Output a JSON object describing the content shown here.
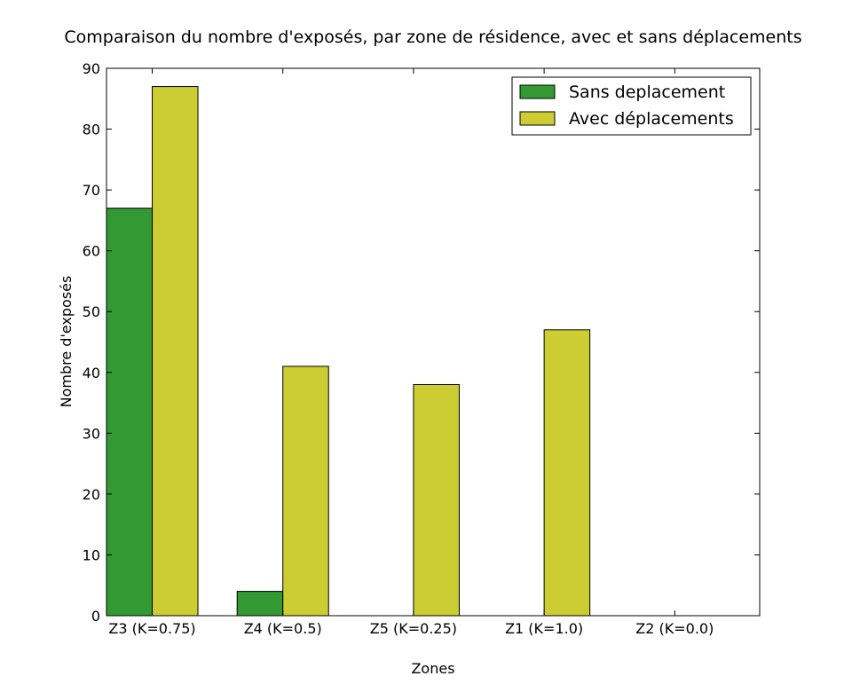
{
  "chart_data": {
    "type": "bar",
    "title": "Comparaison du nombre d'exposés, par zone de résidence, avec et sans déplacements",
    "xlabel": "Zones",
    "ylabel": "Nombre d'exposés",
    "categories": [
      "Z3 (K=0.75)",
      "Z4 (K=0.5)",
      "Z5 (K=0.25)",
      "Z1 (K=1.0)",
      "Z2 (K=0.0)"
    ],
    "series": [
      {
        "name": "Sans deplacement",
        "color": "#339933",
        "values": [
          67,
          4,
          0,
          0,
          0
        ]
      },
      {
        "name": "Avec déplacements",
        "color": "#cccc33",
        "values": [
          87,
          41,
          38,
          47,
          0
        ]
      }
    ],
    "ylim": [
      0,
      90
    ],
    "yticks": [
      0,
      10,
      20,
      30,
      40,
      50,
      60,
      70,
      80,
      90
    ],
    "grid": false,
    "legend_position": "top-right"
  }
}
